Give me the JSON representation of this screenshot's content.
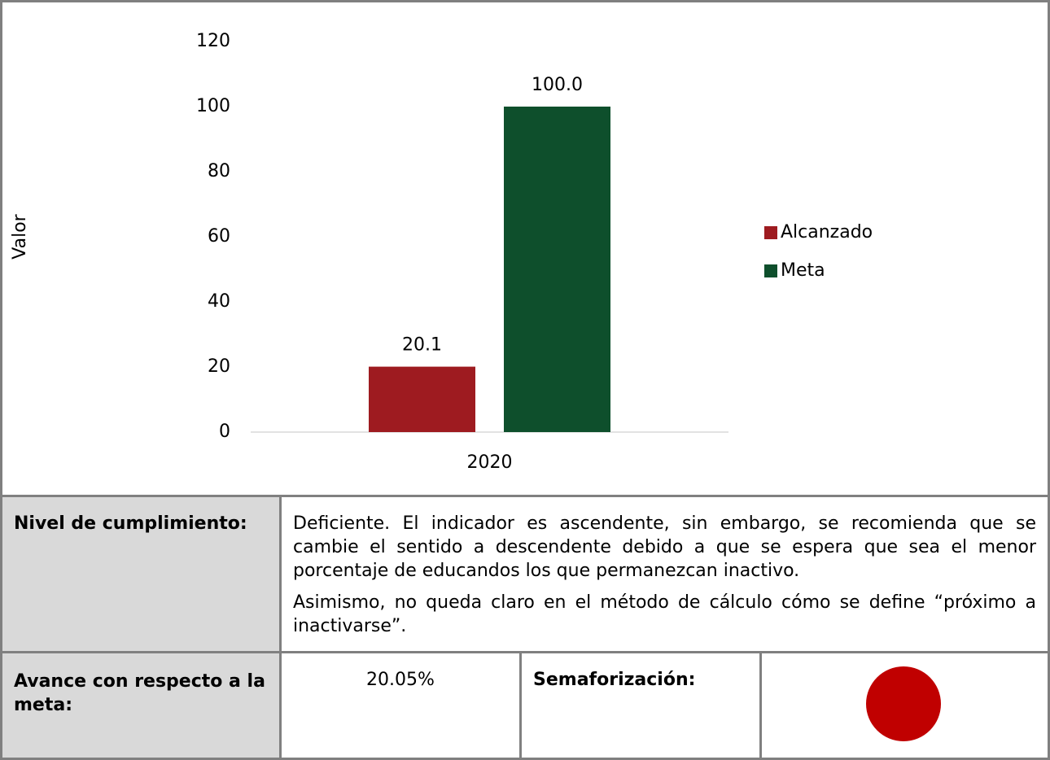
{
  "chart_data": {
    "type": "bar",
    "y_label": "Valor",
    "categories": [
      "2020"
    ],
    "series": [
      {
        "name": "Alcanzado",
        "color": "#9e1b20",
        "values": [
          20.1
        ]
      },
      {
        "name": "Meta",
        "color": "#0e4f2c",
        "values": [
          100
        ],
        "value_labels": [
          "100.0"
        ]
      }
    ],
    "ylim": [
      0,
      120
    ],
    "yticks": [
      0,
      20,
      40,
      60,
      80,
      100,
      120
    ],
    "grid": false,
    "legend": "right"
  },
  "compliance": {
    "label": "Nivel de cumplimiento:",
    "paragraphs": [
      "Deficiente. El indicador es ascendente, sin embargo, se recomienda que se cambie el sentido a descendente debido a que se espera que sea el menor porcentaje de educandos los que permanezcan inactivo.",
      "Asimismo, no queda claro en el método de cálculo cómo se define “próximo a inactivarse”."
    ]
  },
  "progress": {
    "label": "Avance con respecto a la meta:",
    "value": "20.05%"
  },
  "traffic_light": {
    "label": "Semaforización:",
    "color": "#c00000"
  }
}
